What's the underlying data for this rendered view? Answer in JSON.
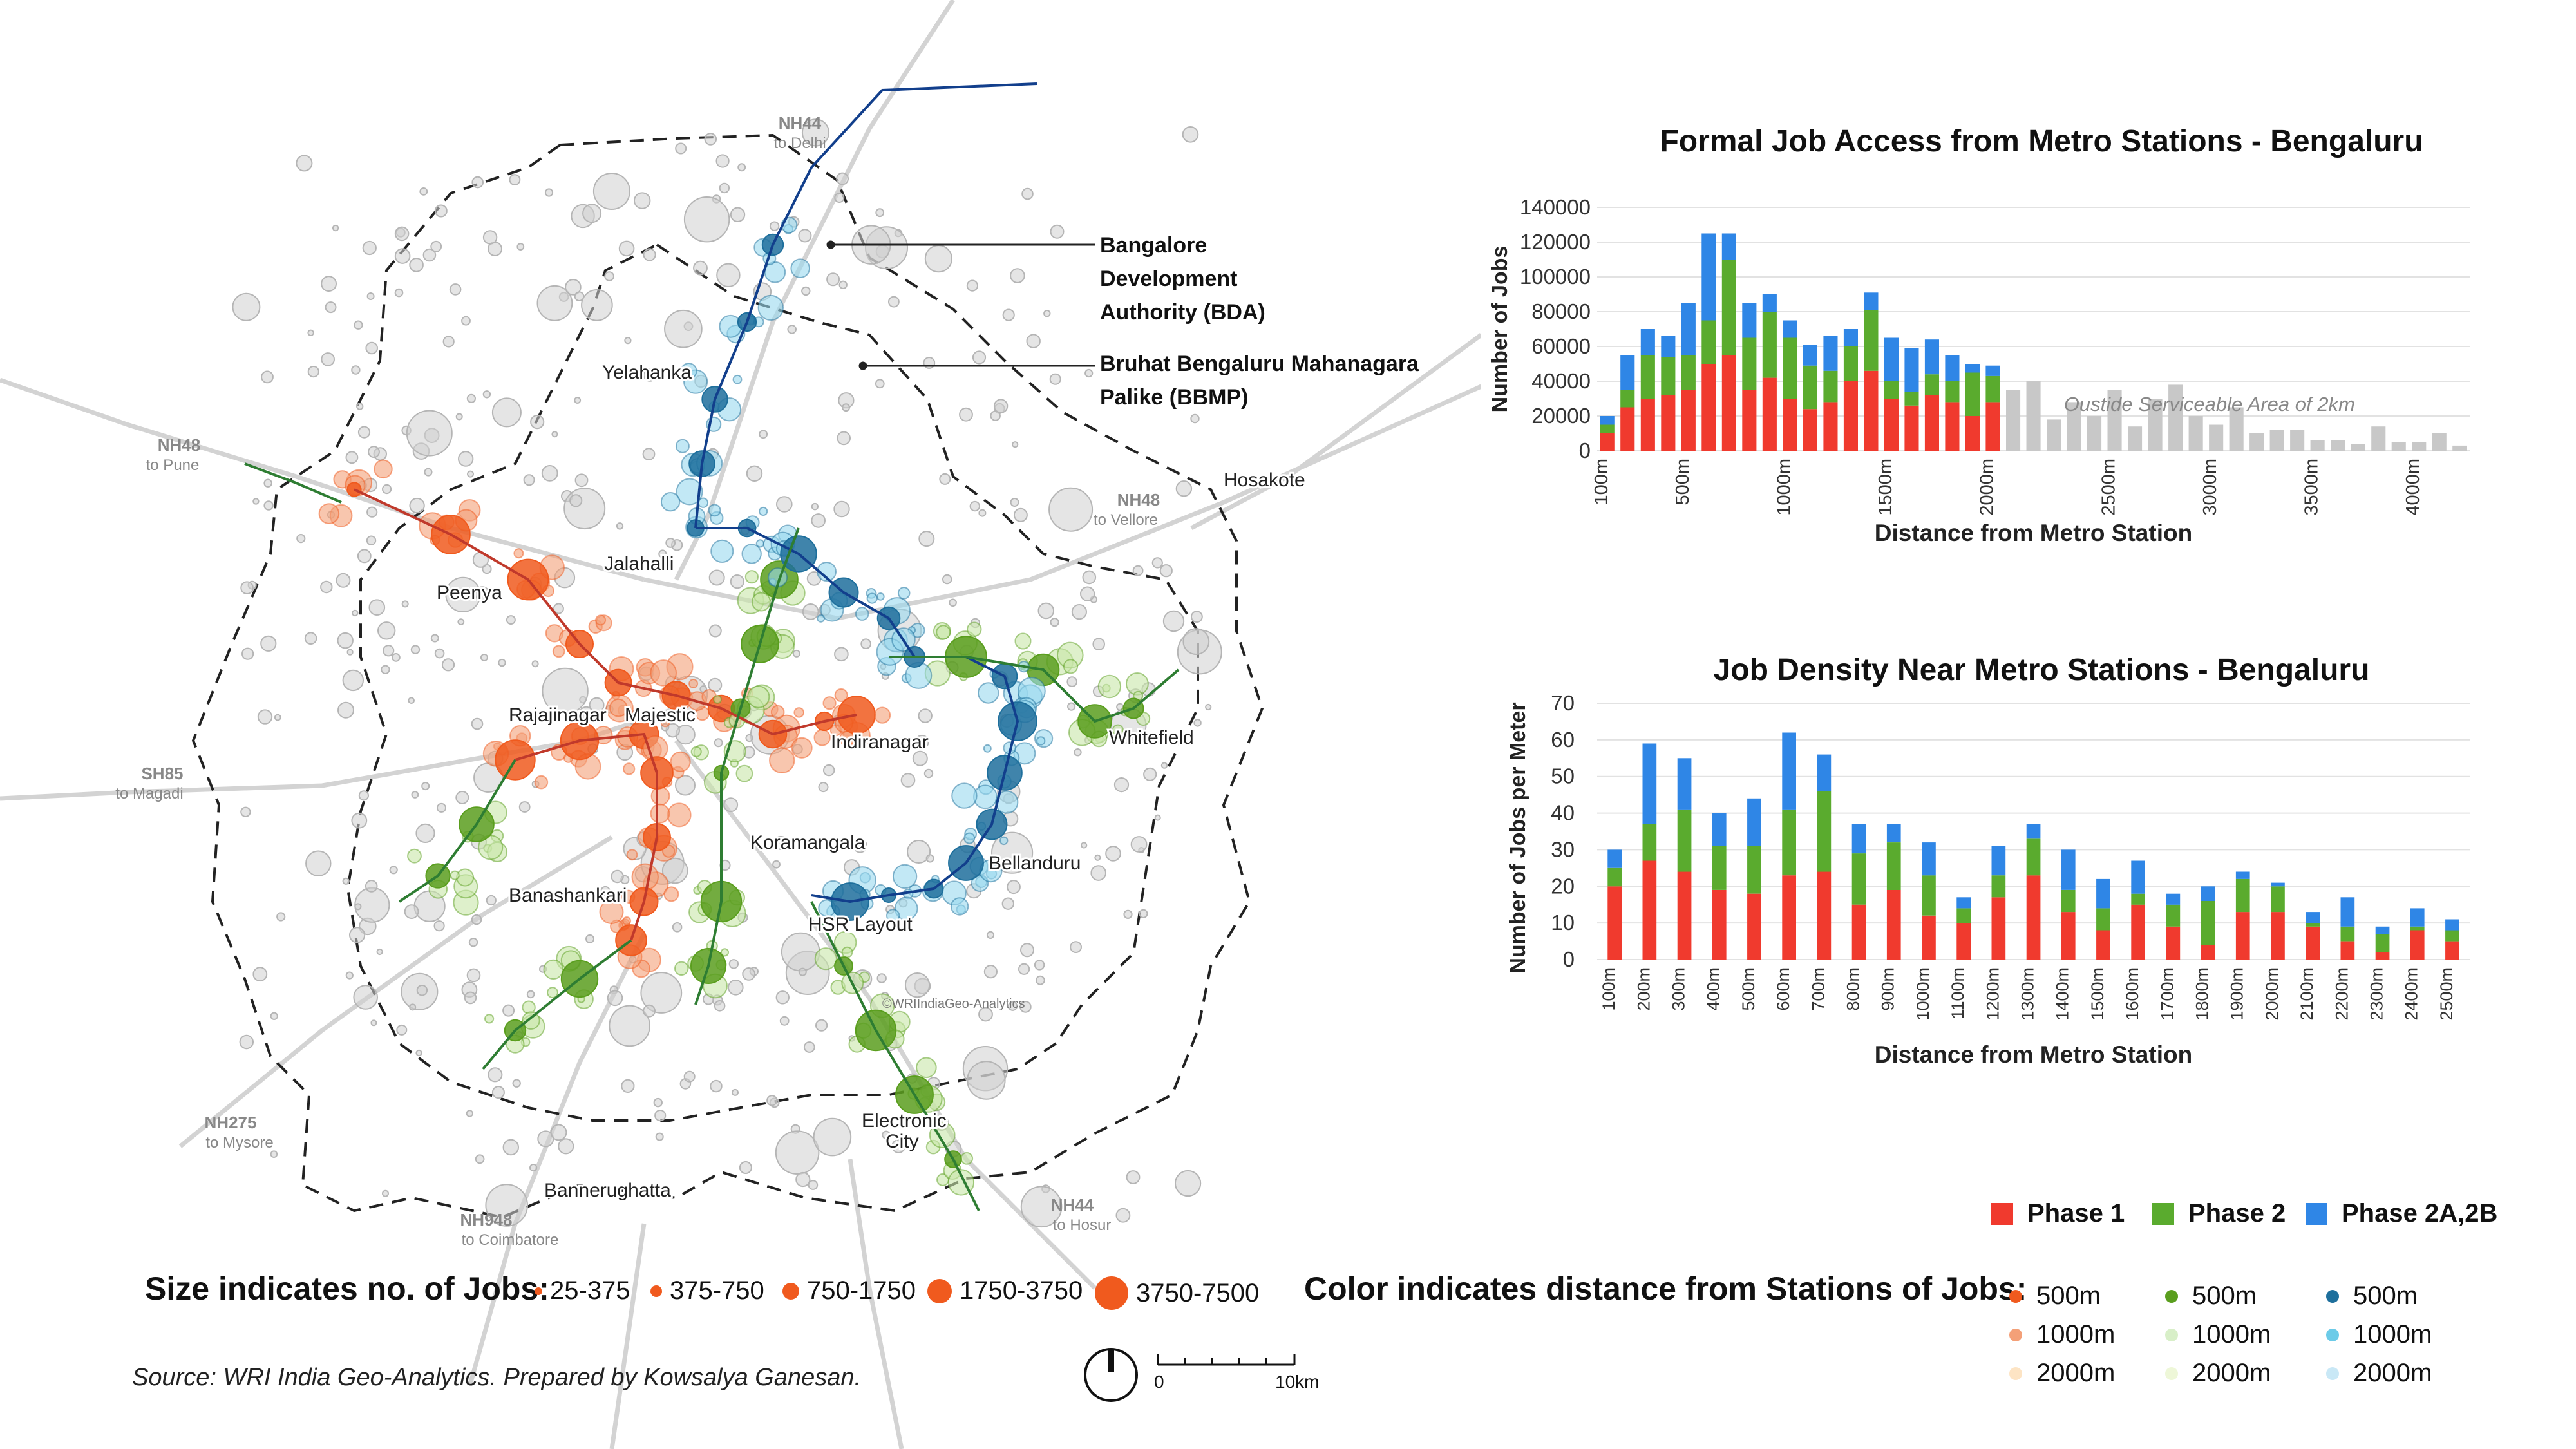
{
  "map": {
    "authority_labels": [
      "Bangalore",
      "Development",
      "Authority (BDA)",
      "Bruhat Bengaluru Mahanagara",
      "Palike (BBMP)"
    ],
    "place_labels": [
      "Yelahanka",
      "Jalahalli",
      "Peenya",
      "Rajajinagar",
      "Majestic",
      "Indiranagar",
      "Whitefield",
      "Koramangala",
      "Bellanduru",
      "Banashankari",
      "HSR Layout",
      "Electronic",
      "City",
      "Bannerughatta",
      "Hosakote"
    ],
    "road_labels": [
      {
        "name": "NH44",
        "sub": "to Delhi"
      },
      {
        "name": "NH48",
        "sub": "to Pune"
      },
      {
        "name": "NH48",
        "sub": "to Vellore"
      },
      {
        "name": "SH85",
        "sub": "to Magadi"
      },
      {
        "name": "NH275",
        "sub": "to Mysore"
      },
      {
        "name": "NH948",
        "sub": "to Coimbatore"
      },
      {
        "name": "NH44",
        "sub": "to Hosur"
      }
    ],
    "watermark": "©WRIIndiaGeo-Analytics",
    "colors": {
      "phase1": "#f05a1e",
      "phase2": "#5a9e1e",
      "phase2ab": "#1e6fb0",
      "metro_line_p1": "#c0392b",
      "metro_line_p2": "#2e7d32",
      "metro_line_p2ab": "#123f8c"
    }
  },
  "legend": {
    "size_title": "Size indicates no. of Jobs:",
    "size_items": [
      "25-375",
      "375-750",
      "750-1750",
      "1750-3750",
      "3750-7500"
    ],
    "color_title": "Color indicates distance from Stations of Jobs:",
    "color_columns": [
      {
        "colors": [
          "#f05a1e",
          "#f4a078",
          "#fde4c4"
        ],
        "labels": [
          "500m",
          "1000m",
          "2000m"
        ]
      },
      {
        "colors": [
          "#5a9e1e",
          "#d8efc8",
          "#eef7d8"
        ],
        "labels": [
          "500m",
          "1000m",
          "2000m"
        ]
      },
      {
        "colors": [
          "#1e6f9c",
          "#6ccbe8",
          "#c9e8f6"
        ],
        "labels": [
          "500m",
          "1000m",
          "2000m"
        ]
      }
    ],
    "phase_items": [
      {
        "label": "Phase 1",
        "color": "#f03a2e"
      },
      {
        "label": "Phase 2",
        "color": "#5aab2e"
      },
      {
        "label": "Phase 2A,2B",
        "color": "#2f86e6"
      }
    ]
  },
  "source": "Source: WRI India Geo-Analytics. Prepared by Kowsalya Ganesan.",
  "scale": {
    "start": "0",
    "end": "10km"
  },
  "chart_data": [
    {
      "type": "bar",
      "stacked": true,
      "title": "Formal Job Access from Metro Stations - Bengaluru",
      "xlabel": "Distance from Metro Station",
      "ylabel": "Number of Jobs",
      "ylim": [
        0,
        140000
      ],
      "yticks": [
        0,
        20000,
        40000,
        60000,
        80000,
        100000,
        120000,
        140000
      ],
      "xtick_labels": [
        "100m",
        "500m",
        "1000m",
        "1500m",
        "2000m",
        "2500m",
        "3000m",
        "3500m",
        "4000m"
      ],
      "xtick_index": [
        0,
        4,
        9,
        14,
        19,
        25,
        30,
        35,
        40
      ],
      "annotation": "Oustide Serviceable Area of 2km",
      "series": [
        {
          "name": "Phase 1",
          "color": "#f03a2e",
          "values": [
            10000,
            25000,
            30000,
            32000,
            35000,
            50000,
            55000,
            35000,
            42000,
            30000,
            24000,
            28000,
            40000,
            46000,
            30000,
            26000,
            32000,
            28000,
            20000,
            28000
          ]
        },
        {
          "name": "Phase 2",
          "color": "#5aab2e",
          "values": [
            5000,
            10000,
            25000,
            22000,
            20000,
            25000,
            55000,
            30000,
            38000,
            35000,
            25000,
            18000,
            20000,
            35000,
            10000,
            8000,
            12000,
            12000,
            25000,
            15000
          ]
        },
        {
          "name": "Phase 2A,2B",
          "color": "#2f86e6",
          "values": [
            5000,
            20000,
            15000,
            12000,
            30000,
            50000,
            15000,
            20000,
            10000,
            10000,
            12000,
            20000,
            10000,
            10000,
            25000,
            25000,
            20000,
            15000,
            5000,
            6000
          ]
        }
      ],
      "outside_values": [
        35000,
        40000,
        18000,
        28000,
        20000,
        35000,
        14000,
        30000,
        38000,
        20000,
        15000,
        25000,
        10000,
        12000,
        12000,
        6000,
        6000,
        4000,
        14000,
        5000,
        5000,
        10000,
        3000
      ]
    },
    {
      "type": "bar",
      "stacked": true,
      "title": "Job Density Near Metro Stations - Bengaluru",
      "xlabel": "Distance from Metro Station",
      "ylabel": "Number of Jobs per Meter",
      "ylim": [
        0,
        70
      ],
      "yticks": [
        0,
        10,
        20,
        30,
        40,
        50,
        60,
        70
      ],
      "categories": [
        "100m",
        "200m",
        "300m",
        "400m",
        "500m",
        "600m",
        "700m",
        "800m",
        "900m",
        "1000m",
        "1100m",
        "1200m",
        "1300m",
        "1400m",
        "1500m",
        "1600m",
        "1700m",
        "1800m",
        "1900m",
        "2000m",
        "2100m",
        "2200m",
        "2300m",
        "2400m",
        "2500m"
      ],
      "series": [
        {
          "name": "Phase 1",
          "color": "#f03a2e",
          "values": [
            20,
            27,
            24,
            19,
            18,
            23,
            24,
            15,
            19,
            12,
            10,
            17,
            23,
            13,
            8,
            15,
            9,
            4,
            13,
            13,
            9,
            5,
            2,
            8,
            5
          ]
        },
        {
          "name": "Phase 2",
          "color": "#5aab2e",
          "values": [
            5,
            10,
            17,
            12,
            13,
            18,
            22,
            14,
            13,
            11,
            4,
            6,
            10,
            6,
            6,
            3,
            6,
            12,
            9,
            7,
            1,
            4,
            5,
            1,
            3
          ]
        },
        {
          "name": "Phase 2A,2B",
          "color": "#2f86e6",
          "values": [
            5,
            22,
            14,
            9,
            13,
            21,
            10,
            8,
            5,
            9,
            3,
            8,
            4,
            11,
            8,
            9,
            3,
            4,
            2,
            1,
            3,
            8,
            2,
            5,
            3
          ]
        }
      ]
    }
  ]
}
